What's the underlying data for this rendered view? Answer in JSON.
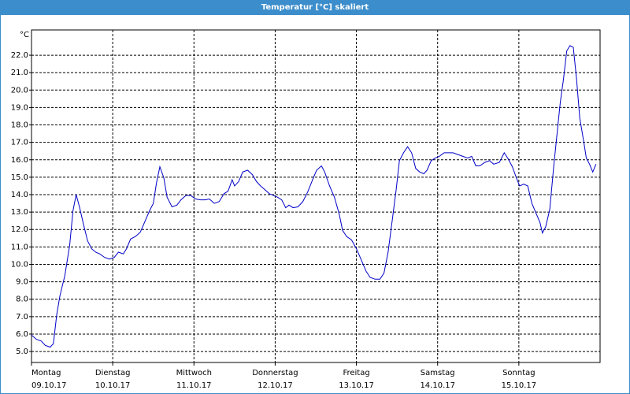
{
  "chart_data": {
    "type": "line",
    "title": "Temperatur [°C] skaliert",
    "y_label": "°C",
    "categories": [
      "Montag",
      "Dienstag",
      "Mittwoch",
      "Donnerstag",
      "Freitag",
      "Samstag",
      "Sonntag"
    ],
    "dates": [
      "09.10.17",
      "10.10.17",
      "11.10.17",
      "12.10.17",
      "13.10.17",
      "14.10.17",
      "15.10.17"
    ],
    "xlim": [
      0,
      7
    ],
    "xticks": [
      0,
      1,
      2,
      3,
      4,
      5,
      6
    ],
    "ylim": [
      4.37,
      23.45
    ],
    "yticks": [
      {
        "value": 5,
        "label": "5.0"
      },
      {
        "value": 6,
        "label": "6.0"
      },
      {
        "value": 7,
        "label": "7.0"
      },
      {
        "value": 8,
        "label": "8.0"
      },
      {
        "value": 9,
        "label": "9.0"
      },
      {
        "value": 10,
        "label": "10.0"
      },
      {
        "value": 11,
        "label": "11.0"
      },
      {
        "value": 12,
        "label": "12.0"
      },
      {
        "value": 13,
        "label": "13.0"
      },
      {
        "value": 14,
        "label": "14.0"
      },
      {
        "value": 15,
        "label": "15.0"
      },
      {
        "value": 16,
        "label": "16.0"
      },
      {
        "value": 17,
        "label": "17.0"
      },
      {
        "value": 18,
        "label": "18.0"
      },
      {
        "value": 19,
        "label": "19.0"
      },
      {
        "value": 20,
        "label": "20.0"
      },
      {
        "value": 21,
        "label": "21.0"
      },
      {
        "value": 22,
        "label": "22.0"
      }
    ],
    "grid": true,
    "color": "#0000c8",
    "x": [
      0,
      0.06,
      0.12,
      0.17,
      0.23,
      0.27,
      0.31,
      0.35,
      0.41,
      0.47,
      0.51,
      0.55,
      0.59,
      0.64,
      0.69,
      0.74,
      0.79,
      0.84,
      0.9,
      0.96,
      1.02,
      1.07,
      1.13,
      1.17,
      1.22,
      1.28,
      1.34,
      1.4,
      1.45,
      1.5,
      1.54,
      1.58,
      1.63,
      1.67,
      1.73,
      1.79,
      1.84,
      1.9,
      1.96,
      2.02,
      2.08,
      2.14,
      2.19,
      2.25,
      2.31,
      2.37,
      2.42,
      2.47,
      2.5,
      2.55,
      2.6,
      2.66,
      2.72,
      2.77,
      2.82,
      2.87,
      2.93,
      2.98,
      3.03,
      3.08,
      3.13,
      3.17,
      3.22,
      3.28,
      3.34,
      3.4,
      3.46,
      3.51,
      3.57,
      3.61,
      3.67,
      3.73,
      3.79,
      3.83,
      3.88,
      3.94,
      4.0,
      4.06,
      4.12,
      4.17,
      4.23,
      4.29,
      4.34,
      4.39,
      4.44,
      4.49,
      4.53,
      4.58,
      4.63,
      4.68,
      4.73,
      4.78,
      4.83,
      4.87,
      4.92,
      4.97,
      5.02,
      5.08,
      5.14,
      5.19,
      5.25,
      5.31,
      5.37,
      5.42,
      5.47,
      5.52,
      5.58,
      5.64,
      5.69,
      5.76,
      5.82,
      5.87,
      5.92,
      5.97,
      6.01,
      6.06,
      6.11,
      6.16,
      6.21,
      6.26,
      6.29,
      6.33,
      6.38,
      6.43,
      6.48,
      6.51,
      6.55,
      6.59,
      6.63,
      6.67,
      6.71,
      6.75,
      6.8,
      6.83,
      6.87,
      6.91,
      6.95
    ],
    "values": [
      5.95,
      5.7,
      5.6,
      5.35,
      5.25,
      5.45,
      7.1,
      8.2,
      9.35,
      11.1,
      13.05,
      14.0,
      13.3,
      12.3,
      11.35,
      10.9,
      10.7,
      10.6,
      10.4,
      10.3,
      10.4,
      10.7,
      10.6,
      10.9,
      11.45,
      11.6,
      11.85,
      12.5,
      13.05,
      13.5,
      14.7,
      15.6,
      14.95,
      13.85,
      13.3,
      13.4,
      13.7,
      13.95,
      13.95,
      13.75,
      13.7,
      13.7,
      13.75,
      13.5,
      13.6,
      14.05,
      14.2,
      14.85,
      14.5,
      14.75,
      15.3,
      15.4,
      15.15,
      14.75,
      14.5,
      14.3,
      14.05,
      13.95,
      13.85,
      13.7,
      13.25,
      13.4,
      13.25,
      13.3,
      13.6,
      14.15,
      14.85,
      15.4,
      15.65,
      15.3,
      14.5,
      13.85,
      12.85,
      11.95,
      11.6,
      11.4,
      10.9,
      10.25,
      9.6,
      9.25,
      9.15,
      9.15,
      9.5,
      10.7,
      12.5,
      14.3,
      15.95,
      16.4,
      16.75,
      16.4,
      15.5,
      15.3,
      15.2,
      15.4,
      15.95,
      16.1,
      16.2,
      16.4,
      16.4,
      16.4,
      16.3,
      16.2,
      16.1,
      16.2,
      15.65,
      15.65,
      15.85,
      15.95,
      15.75,
      15.85,
      16.4,
      16.05,
      15.6,
      14.95,
      14.5,
      14.6,
      14.5,
      13.5,
      12.95,
      12.4,
      11.8,
      12.15,
      13.15,
      15.65,
      17.95,
      19.3,
      20.65,
      22.25,
      22.55,
      22.45,
      20.65,
      18.4,
      17.0,
      16.1,
      15.75,
      15.3,
      15.75
    ]
  }
}
